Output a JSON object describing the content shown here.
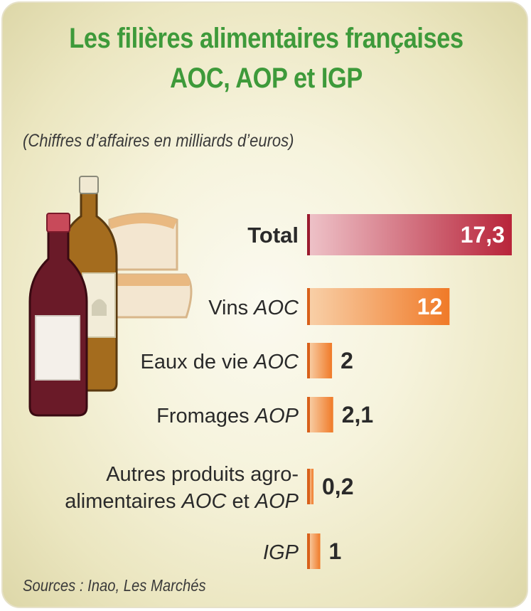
{
  "title_line1": "Les filières alimentaires françaises",
  "title_line2": "AOC, AOP et IGP",
  "subtitle": "(Chiffres d’affaires en milliards d’euros)",
  "sources": "Sources : Inao, Les Marchés",
  "colors": {
    "title": "#3e9a3a",
    "total_bar": "#b8243a",
    "category_bar": "#f07a28",
    "text": "#2a2a2a"
  },
  "chart_data": {
    "type": "bar",
    "orientation": "horizontal",
    "categories": [
      {
        "parts": [
          {
            "text": "Total",
            "italic": false,
            "bold": true
          }
        ]
      },
      {
        "parts": [
          {
            "text": "Vins ",
            "italic": false
          },
          {
            "text": "AOC",
            "italic": true
          }
        ]
      },
      {
        "parts": [
          {
            "text": "Eaux de vie ",
            "italic": false
          },
          {
            "text": "AOC",
            "italic": true
          }
        ]
      },
      {
        "parts": [
          {
            "text": "Fromages ",
            "italic": false
          },
          {
            "text": "AOP",
            "italic": true
          }
        ]
      },
      {
        "lines": [
          [
            {
              "text": "Autres produits agro-",
              "italic": false
            }
          ],
          [
            {
              "text": "alimentaires ",
              "italic": false
            },
            {
              "text": "AOC",
              "italic": true
            },
            {
              "text": " et ",
              "italic": false
            },
            {
              "text": "AOP",
              "italic": true
            }
          ]
        ]
      },
      {
        "parts": [
          {
            "text": "IGP",
            "italic": true
          }
        ]
      }
    ],
    "values": [
      17.3,
      12,
      2,
      2.1,
      0.2,
      1
    ],
    "value_labels": [
      "17,3",
      "12",
      "2",
      "2,1",
      "0,2",
      "1"
    ],
    "label_inside": [
      true,
      true,
      false,
      false,
      false,
      false
    ],
    "xlim": [
      0,
      17.3
    ],
    "grid": false,
    "legend": "none"
  },
  "illustration": {
    "items": [
      "red-wine-bottle",
      "white-wine-bottle",
      "cheese-wedges"
    ]
  }
}
